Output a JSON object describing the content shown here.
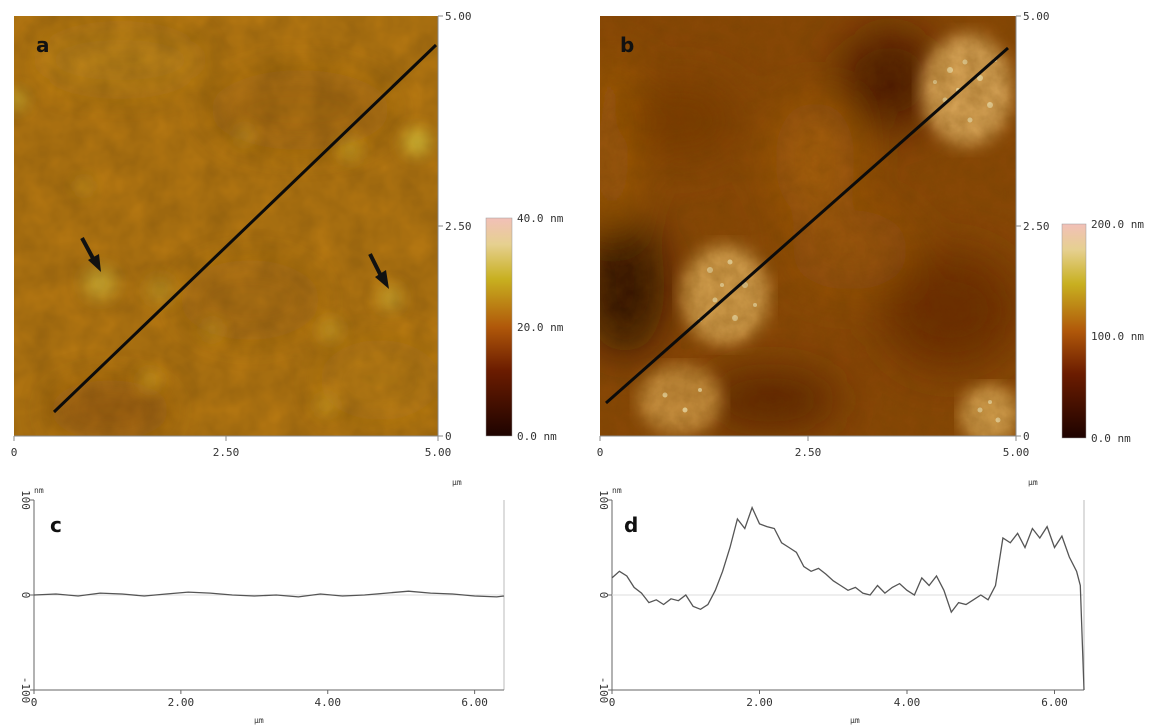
{
  "chart_data": [
    {
      "type": "heatmap",
      "panel_label": "a",
      "x_ticks": [
        "0",
        "2.50",
        "5.00"
      ],
      "y_ticks": [
        "5.00",
        "2.50",
        "0"
      ],
      "x_unit": "µm",
      "xlim": [
        0,
        5.0
      ],
      "ylim": [
        0,
        5.0
      ],
      "colorbar": {
        "ticks": [
          "40.0 nm",
          "20.0 nm",
          "0.0 nm"
        ],
        "range_nm": [
          0,
          40
        ]
      },
      "arrows": 2,
      "line_profile": {
        "from": [
          0.45,
          0.3
        ],
        "to": [
          4.95,
          4.6
        ]
      }
    },
    {
      "type": "heatmap",
      "panel_label": "b",
      "x_ticks": [
        "0",
        "2.50",
        "5.00"
      ],
      "y_ticks": [
        "5.00",
        "2.50",
        "0"
      ],
      "x_unit": "µm",
      "xlim": [
        0,
        5.0
      ],
      "ylim": [
        0,
        5.0
      ],
      "colorbar": {
        "ticks": [
          "200.0 nm",
          "100.0 nm",
          "0.0 nm"
        ],
        "range_nm": [
          0,
          200
        ]
      },
      "line_profile": {
        "from": [
          0.05,
          0.45
        ],
        "to": [
          4.95,
          4.6
        ]
      }
    },
    {
      "type": "line",
      "panel_label": "c",
      "y_unit": "nm",
      "x_unit": "µm",
      "y_ticks": [
        "100",
        "0",
        "-100"
      ],
      "x_ticks": [
        "0",
        "2.00",
        "4.00",
        "6.00"
      ],
      "xlim": [
        0,
        6.4
      ],
      "ylim": [
        -100,
        100
      ],
      "series": [
        {
          "x": [
            0,
            0.3,
            0.6,
            0.9,
            1.2,
            1.5,
            1.8,
            2.1,
            2.4,
            2.7,
            3.0,
            3.3,
            3.6,
            3.9,
            4.2,
            4.5,
            4.8,
            5.1,
            5.4,
            5.7,
            6.0,
            6.3,
            6.4
          ],
          "values": [
            0,
            1,
            -1,
            2,
            1,
            -1,
            1,
            3,
            2,
            0,
            -1,
            0,
            -2,
            1,
            -1,
            0,
            2,
            4,
            2,
            1,
            -1,
            -2,
            -1
          ]
        }
      ]
    },
    {
      "type": "line",
      "panel_label": "d",
      "y_unit": "nm",
      "x_unit": "µm",
      "y_ticks": [
        "100",
        "0",
        "-100"
      ],
      "x_ticks": [
        "0",
        "2.00",
        "4.00",
        "6.00"
      ],
      "xlim": [
        0,
        6.4
      ],
      "ylim": [
        -100,
        100
      ],
      "series": [
        {
          "x": [
            0,
            0.1,
            0.2,
            0.3,
            0.4,
            0.5,
            0.6,
            0.7,
            0.8,
            0.9,
            1.0,
            1.1,
            1.2,
            1.3,
            1.4,
            1.5,
            1.6,
            1.7,
            1.8,
            1.9,
            2.0,
            2.1,
            2.2,
            2.3,
            2.4,
            2.5,
            2.6,
            2.7,
            2.8,
            2.9,
            3.0,
            3.1,
            3.2,
            3.3,
            3.4,
            3.5,
            3.6,
            3.7,
            3.8,
            3.9,
            4.0,
            4.1,
            4.2,
            4.3,
            4.4,
            4.5,
            4.6,
            4.7,
            4.8,
            4.9,
            5.0,
            5.1,
            5.2,
            5.3,
            5.4,
            5.5,
            5.6,
            5.7,
            5.8,
            5.9,
            6.0,
            6.1,
            6.2,
            6.3,
            6.35,
            6.4
          ],
          "values": [
            18,
            25,
            20,
            8,
            2,
            -8,
            -5,
            -10,
            -4,
            -6,
            0,
            -12,
            -15,
            -10,
            5,
            25,
            50,
            80,
            70,
            92,
            75,
            72,
            70,
            55,
            50,
            45,
            30,
            25,
            28,
            22,
            15,
            10,
            5,
            8,
            2,
            0,
            10,
            2,
            8,
            12,
            5,
            0,
            18,
            10,
            20,
            5,
            -18,
            -8,
            -10,
            -5,
            0,
            -5,
            10,
            60,
            55,
            65,
            50,
            70,
            60,
            72,
            50,
            62,
            40,
            25,
            10,
            -100
          ]
        }
      ]
    }
  ]
}
